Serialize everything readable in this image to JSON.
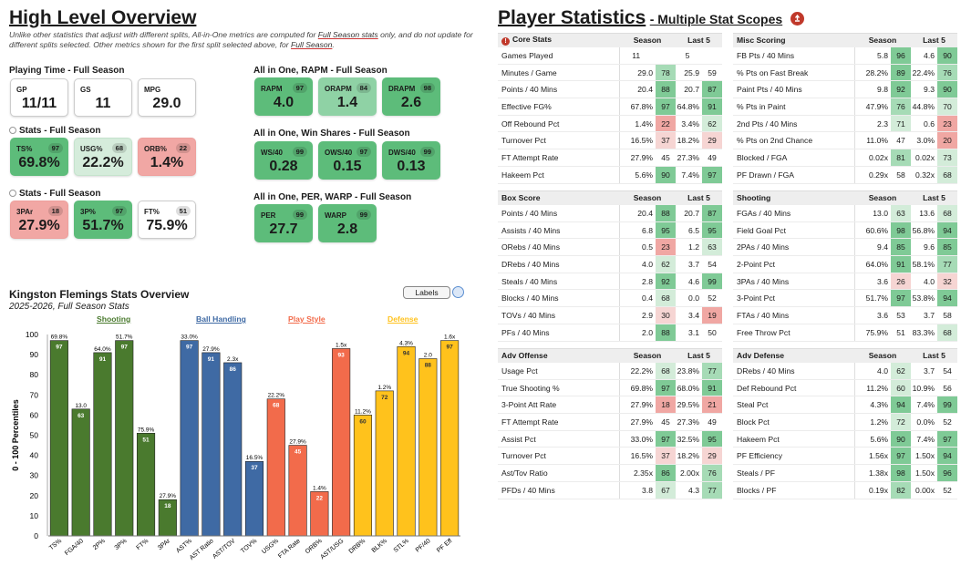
{
  "left": {
    "title": "High Level Overview",
    "note_parts": [
      "Unlike other statistics that adjust with different splits, All-in-One metrics are computed for ",
      "Full Season stats",
      " only, and do not update for different splits selected. Other metrics shown for the first split selected above, for ",
      "Full Season",
      "."
    ],
    "playing_time": {
      "label": "Playing Time - Full Season",
      "cards": [
        {
          "label": "GP",
          "value": "11/11"
        },
        {
          "label": "GS",
          "value": "11"
        },
        {
          "label": "MPG",
          "value": "29.0"
        }
      ]
    },
    "stats1": {
      "label": "Stats - Full Season",
      "cards": [
        {
          "label": "TS%",
          "value": "69.8%",
          "pct": "97"
        },
        {
          "label": "USG%",
          "value": "22.2%",
          "pct": "68"
        },
        {
          "label": "ORB%",
          "value": "1.4%",
          "pct": "22"
        }
      ]
    },
    "stats2": {
      "label": "Stats - Full Season",
      "cards": [
        {
          "label": "3PAr",
          "value": "27.9%",
          "pct": "18"
        },
        {
          "label": "3P%",
          "value": "51.7%",
          "pct": "97"
        },
        {
          "label": "FT%",
          "value": "75.9%",
          "pct": "51"
        }
      ]
    },
    "rapm": {
      "label": "All in One, RAPM - Full Season",
      "cards": [
        {
          "label": "RAPM",
          "value": "4.0",
          "pct": "97"
        },
        {
          "label": "ORAPM",
          "value": "1.4",
          "pct": "84"
        },
        {
          "label": "DRAPM",
          "value": "2.6",
          "pct": "98"
        }
      ]
    },
    "winshares": {
      "label": "All in One, Win Shares - Full Season",
      "cards": [
        {
          "label": "WS/40",
          "value": "0.28",
          "pct": "99"
        },
        {
          "label": "OWS/40",
          "value": "0.15",
          "pct": "97"
        },
        {
          "label": "DWS/40",
          "value": "0.13",
          "pct": "99"
        }
      ]
    },
    "per": {
      "label": "All in One, PER, WARP - Full Season",
      "cards": [
        {
          "label": "PER",
          "value": "27.7",
          "pct": "99"
        },
        {
          "label": "WARP",
          "value": "2.8",
          "pct": "99"
        }
      ]
    }
  },
  "chart_header": {
    "title": "Kingston Flemings Stats Overview",
    "subtitle": "2025-2026, Full Season Stats",
    "labels_button": "Labels"
  },
  "chart_data": {
    "type": "bar",
    "ylabel": "0 - 100 Percentiles",
    "ylim": [
      0,
      100
    ],
    "yticks": [
      0,
      5,
      10,
      15,
      20,
      25,
      30,
      35,
      40,
      45,
      50,
      55,
      60,
      65,
      70,
      75,
      80,
      85,
      90,
      95,
      100
    ],
    "groups": [
      {
        "name": "Shooting",
        "color": "#4a7a2e"
      },
      {
        "name": "Ball Handling",
        "color": "#3f6aa4"
      },
      {
        "name": "Play Style",
        "color": "#f26b4b"
      },
      {
        "name": "Defense",
        "color": "#ffc21c"
      }
    ],
    "bars": [
      {
        "cat": "TS%",
        "value": 97,
        "raw": "69.8%",
        "group": 0
      },
      {
        "cat": "FGA/40",
        "value": 63,
        "raw": "13.0",
        "group": 0
      },
      {
        "cat": "2P%",
        "value": 91,
        "raw": "64.0%",
        "group": 0
      },
      {
        "cat": "3P%",
        "value": 97,
        "raw": "51.7%",
        "group": 0
      },
      {
        "cat": "FT%",
        "value": 51,
        "raw": "75.9%",
        "group": 0
      },
      {
        "cat": "3PAr",
        "value": 18,
        "raw": "27.9%",
        "group": 0
      },
      {
        "cat": "AST%",
        "value": 97,
        "raw": "33.0%",
        "group": 1
      },
      {
        "cat": "AST Ratio",
        "value": 91,
        "raw": "27.9%",
        "group": 1
      },
      {
        "cat": "AST/TOV",
        "value": 86,
        "raw": "2.3x",
        "group": 1
      },
      {
        "cat": "TOV%",
        "value": 37,
        "raw": "16.5%",
        "group": 1
      },
      {
        "cat": "USG%",
        "value": 68,
        "raw": "22.2%",
        "group": 2
      },
      {
        "cat": "FTA Rate",
        "value": 45,
        "raw": "27.9%",
        "group": 2
      },
      {
        "cat": "ORB%",
        "value": 22,
        "raw": "1.4%",
        "group": 2
      },
      {
        "cat": "AST/USG",
        "value": 93,
        "raw": "1.5x",
        "group": 2
      },
      {
        "cat": "DRB%",
        "value": 60,
        "raw": "11.2%",
        "group": 3
      },
      {
        "cat": "BLK%",
        "value": 72,
        "raw": "1.2%",
        "group": 3
      },
      {
        "cat": "STL%",
        "value": 94,
        "raw": "4.3%",
        "group": 3
      },
      {
        "cat": "PF/40",
        "value": 88,
        "raw": "2.0",
        "group": 3
      },
      {
        "cat": "PF Eff",
        "value": 97,
        "raw": "1.6x",
        "group": 3
      }
    ]
  },
  "right": {
    "title": "Player Statistics",
    "subtitle": "- Multiple Stat Scopes",
    "col_season": "Season",
    "col_last5": "Last 5",
    "tables": [
      {
        "title": "Core Stats",
        "rows": [
          [
            "Games Played",
            "11",
            "",
            "5",
            ""
          ],
          [
            "Minutes / Game",
            "29.0",
            "78",
            "25.9",
            "59"
          ],
          [
            "Points / 40 Mins",
            "20.4",
            "88",
            "20.7",
            "87"
          ],
          [
            "Effective FG%",
            "67.8%",
            "97",
            "64.8%",
            "91"
          ],
          [
            "Off Rebound Pct",
            "1.4%",
            "22",
            "3.4%",
            "62"
          ],
          [
            "Turnover Pct",
            "16.5%",
            "37",
            "18.2%",
            "29"
          ],
          [
            "FT Attempt Rate",
            "27.9%",
            "45",
            "27.3%",
            "49"
          ],
          [
            "Hakeem Pct",
            "5.6%",
            "90",
            "7.4%",
            "97"
          ]
        ]
      },
      {
        "title": "Misc Scoring",
        "rows": [
          [
            "FB Pts / 40 Mins",
            "5.8",
            "96",
            "4.6",
            "90"
          ],
          [
            "% Pts on Fast Break",
            "28.2%",
            "89",
            "22.4%",
            "76"
          ],
          [
            "Paint Pts / 40 Mins",
            "9.8",
            "92",
            "9.3",
            "90"
          ],
          [
            "% Pts in Paint",
            "47.9%",
            "76",
            "44.8%",
            "70"
          ],
          [
            "2nd Pts / 40 Mins",
            "2.3",
            "71",
            "0.6",
            "23"
          ],
          [
            "% Pts on 2nd Chance",
            "11.0%",
            "47",
            "3.0%",
            "20"
          ],
          [
            "Blocked / FGA",
            "0.02x",
            "81",
            "0.02x",
            "73"
          ],
          [
            "PF Drawn / FGA",
            "0.29x",
            "58",
            "0.32x",
            "68"
          ]
        ]
      },
      {
        "title": "Box Score",
        "rows": [
          [
            "Points / 40 Mins",
            "20.4",
            "88",
            "20.7",
            "87"
          ],
          [
            "Assists / 40 Mins",
            "6.8",
            "95",
            "6.5",
            "95"
          ],
          [
            "ORebs / 40 Mins",
            "0.5",
            "23",
            "1.2",
            "63"
          ],
          [
            "DRebs / 40 Mins",
            "4.0",
            "62",
            "3.7",
            "54"
          ],
          [
            "Steals / 40 Mins",
            "2.8",
            "92",
            "4.6",
            "99"
          ],
          [
            "Blocks / 40 Mins",
            "0.4",
            "68",
            "0.0",
            "52"
          ],
          [
            "TOVs / 40 Mins",
            "2.9",
            "30",
            "3.4",
            "19"
          ],
          [
            "PFs / 40 Mins",
            "2.0",
            "88",
            "3.1",
            "50"
          ]
        ]
      },
      {
        "title": "Shooting",
        "rows": [
          [
            "FGAs / 40 Mins",
            "13.0",
            "63",
            "13.6",
            "68"
          ],
          [
            "Field Goal Pct",
            "60.6%",
            "98",
            "56.8%",
            "94"
          ],
          [
            "2PAs / 40 Mins",
            "9.4",
            "85",
            "9.6",
            "85"
          ],
          [
            "2-Point Pct",
            "64.0%",
            "91",
            "58.1%",
            "77"
          ],
          [
            "3PAs / 40 Mins",
            "3.6",
            "26",
            "4.0",
            "32"
          ],
          [
            "3-Point Pct",
            "51.7%",
            "97",
            "53.8%",
            "94"
          ],
          [
            "FTAs / 40 Mins",
            "3.6",
            "53",
            "3.7",
            "58"
          ],
          [
            "Free Throw Pct",
            "75.9%",
            "51",
            "83.3%",
            "68"
          ]
        ]
      },
      {
        "title": "Adv Offense",
        "rows": [
          [
            "Usage Pct",
            "22.2%",
            "68",
            "23.8%",
            "77"
          ],
          [
            "True Shooting %",
            "69.8%",
            "97",
            "68.0%",
            "91"
          ],
          [
            "3-Point Att Rate",
            "27.9%",
            "18",
            "29.5%",
            "21"
          ],
          [
            "FT Attempt Rate",
            "27.9%",
            "45",
            "27.3%",
            "49"
          ],
          [
            "Assist Pct",
            "33.0%",
            "97",
            "32.5%",
            "95"
          ],
          [
            "Turnover Pct",
            "16.5%",
            "37",
            "18.2%",
            "29"
          ],
          [
            "Ast/Tov Ratio",
            "2.35x",
            "86",
            "2.00x",
            "76"
          ],
          [
            "PFDs / 40 Mins",
            "3.8",
            "67",
            "4.3",
            "77"
          ]
        ]
      },
      {
        "title": "Adv Defense",
        "rows": [
          [
            "DRebs / 40 Mins",
            "4.0",
            "62",
            "3.7",
            "54"
          ],
          [
            "Def Rebound Pct",
            "11.2%",
            "60",
            "10.9%",
            "56"
          ],
          [
            "Steal Pct",
            "4.3%",
            "94",
            "7.4%",
            "99"
          ],
          [
            "Block Pct",
            "1.2%",
            "72",
            "0.0%",
            "52"
          ],
          [
            "Hakeem Pct",
            "5.6%",
            "90",
            "7.4%",
            "97"
          ],
          [
            "PF Efficiency",
            "1.56x",
            "97",
            "1.50x",
            "94"
          ],
          [
            "Steals / PF",
            "1.38x",
            "98",
            "1.50x",
            "96"
          ],
          [
            "Blocks / PF",
            "0.19x",
            "82",
            "0.00x",
            "52"
          ]
        ]
      }
    ]
  }
}
